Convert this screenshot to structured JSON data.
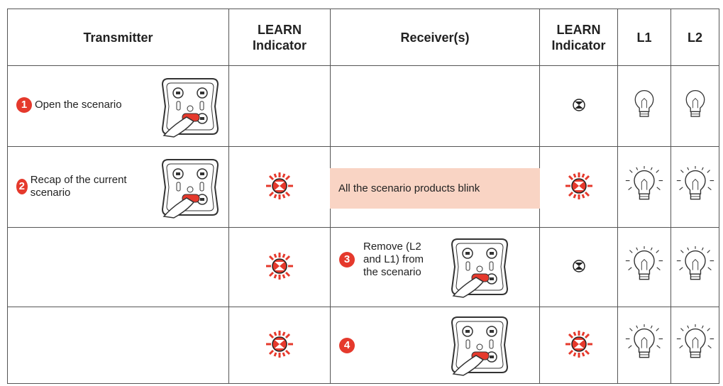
{
  "table": {
    "header": [
      "Transmitter",
      "LEARN Indicator",
      "Receiver(s)",
      "LEARN Indicator",
      "L1",
      "L2"
    ],
    "rows": [
      {
        "transmitter": {
          "step": "1",
          "text": "Open the scenario"
        }
      },
      {
        "transmitter": {
          "step": "2",
          "text": "Recap of the current scenario"
        },
        "receiver": {
          "text": "All the scenario products blink"
        }
      },
      {
        "receiver": {
          "step": "3",
          "text": "Remove (L2 and L1) from the scenario"
        }
      },
      {
        "receiver": {
          "step": "4"
        }
      }
    ]
  }
}
